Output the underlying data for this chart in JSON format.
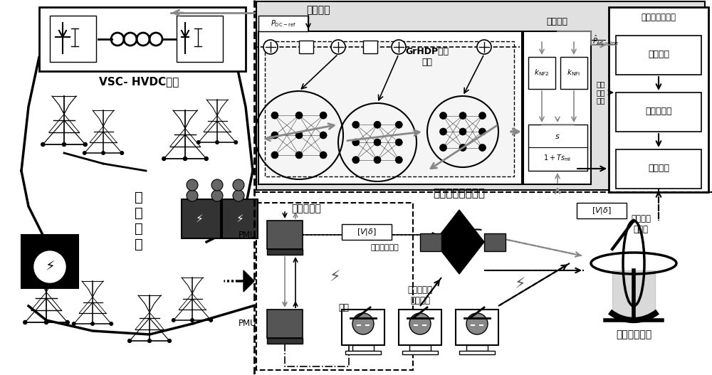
{
  "bg_color": "#ffffff",
  "labels": {
    "vsc_hvdc": "VSC- HVDC线路",
    "power_system": "电\n力\n系\n统",
    "control_signal": "控制信号",
    "pdc_ref": "$P_{\\mathrm{DC-ref}}$",
    "grhdp": "GrHDP控制\n模块",
    "phase_shift": "移相模块",
    "linear_estimator": "线性状态估计器",
    "data_recovery": "数据恢复",
    "attack_source": "攻击源确认",
    "attack_detect": "攻击检测",
    "adaptive_controller": "自适应阻尼控制器",
    "specific_line": "特定联络线",
    "pmu_label": "PMU",
    "pmu2_label": "PMU",
    "real_signal": "真实量测信号",
    "attacked_signal": "被攻击量\n测信号",
    "false_data": "虚假数据注\n入型攻击",
    "hackers": "黑客",
    "wide_area": "广域测量系统",
    "knf2": "$k_{\\mathrm{NF2}}$",
    "knfi": "$k_{\\mathrm{NFI}}$",
    "transfer_func_top": "$s$",
    "transfer_func_bot": "$1+Ts_{\\mathrm{ml}}$",
    "pac_line": "$\\hat{P}_{\\mathrm{AC-line}}$",
    "est_input": "估计\n输入\n信号",
    "vi_delta1": "$[V|\\delta]$",
    "vi_delta2": "$[V|\\delta]$"
  }
}
